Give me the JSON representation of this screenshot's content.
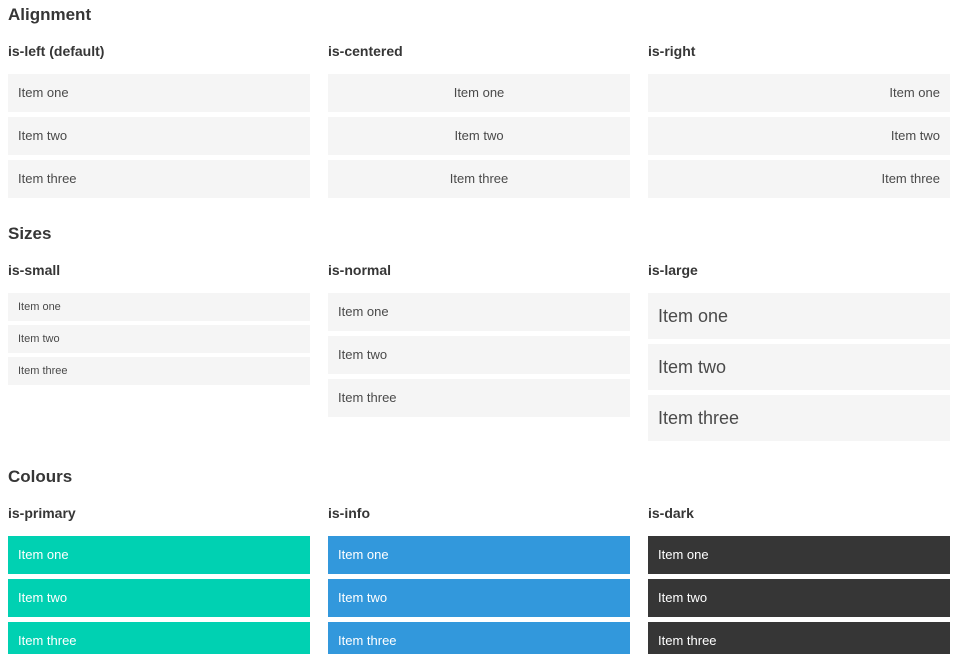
{
  "colors": {
    "primary": "#00d1b2",
    "info": "#3298dc",
    "dark": "#363636",
    "item_background": "#f5f5f5",
    "item_text": "#4a4a4a",
    "item_text_on_color": "#ffffff",
    "heading_text": "#363636",
    "page_background": "#ffffff"
  },
  "sections": [
    {
      "title": "Alignment",
      "columns": [
        {
          "heading": "is-left (default)",
          "variant": "left",
          "items": [
            "Item one",
            "Item two",
            "Item three"
          ]
        },
        {
          "heading": "is-centered",
          "variant": "centered",
          "items": [
            "Item one",
            "Item two",
            "Item three"
          ]
        },
        {
          "heading": "is-right",
          "variant": "right",
          "items": [
            "Item one",
            "Item two",
            "Item three"
          ]
        }
      ]
    },
    {
      "title": "Sizes",
      "columns": [
        {
          "heading": "is-small",
          "variant": "small",
          "items": [
            "Item one",
            "Item two",
            "Item three"
          ]
        },
        {
          "heading": "is-normal",
          "variant": "normal",
          "items": [
            "Item one",
            "Item two",
            "Item three"
          ]
        },
        {
          "heading": "is-large",
          "variant": "large",
          "items": [
            "Item one",
            "Item two",
            "Item three"
          ]
        }
      ]
    },
    {
      "title": "Colours",
      "columns": [
        {
          "heading": "is-primary",
          "variant": "primary",
          "items": [
            "Item one",
            "Item two",
            "Item three"
          ]
        },
        {
          "heading": "is-info",
          "variant": "info",
          "items": [
            "Item one",
            "Item two",
            "Item three"
          ]
        },
        {
          "heading": "is-dark",
          "variant": "dark",
          "items": [
            "Item one",
            "Item two",
            "Item three"
          ]
        }
      ]
    }
  ]
}
